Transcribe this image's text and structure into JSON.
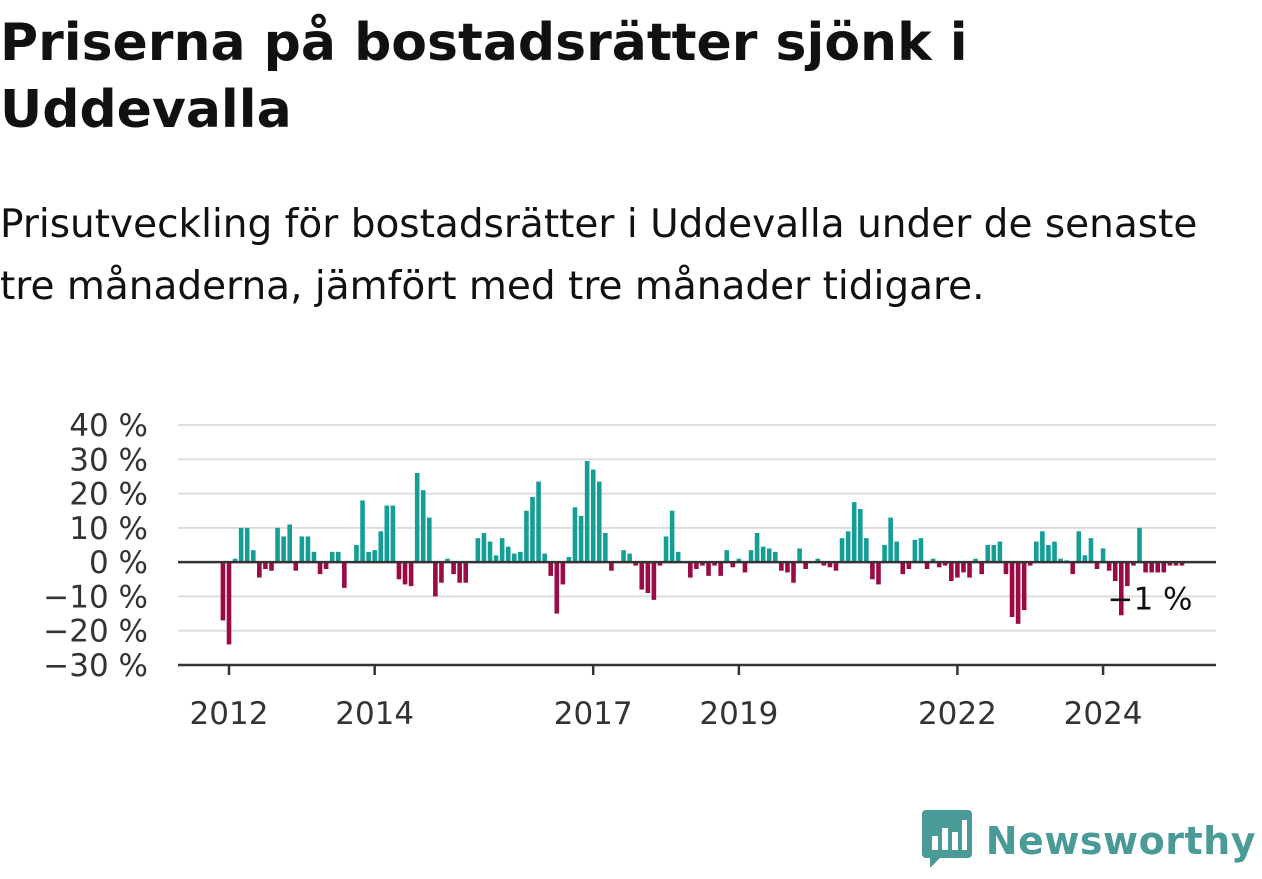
{
  "title": "Priserna på bostadsrätter sjönk i Uddevalla",
  "subtitle": "Prisutveckling för bostadsrätter i Uddevalla under de senaste tre månaderna, jämfört med tre månader tidigare.",
  "brand": {
    "name": "Newsworthy",
    "icon": "newsworthy-logo-icon",
    "color": "#4a9a98"
  },
  "chart_data": {
    "type": "bar",
    "ylim": [
      -30,
      40
    ],
    "yticks": [
      40,
      30,
      20,
      10,
      0,
      -10,
      -20,
      -30
    ],
    "ytick_labels": [
      "40 %",
      "30 %",
      "20 %",
      "10 %",
      "0 %",
      "−10 %",
      "−20 %",
      "−30 %"
    ],
    "xticks": [
      "2012",
      "2014",
      "2017",
      "2019",
      "2022",
      "2024"
    ],
    "grid": true,
    "colors": {
      "positive": "#159e96",
      "negative": "#9b0a44"
    },
    "last_label": "−1 %",
    "x": [
      "2011-12",
      "2012-01",
      "2012-02",
      "2012-03",
      "2012-04",
      "2012-05",
      "2012-06",
      "2012-07",
      "2012-08",
      "2012-09",
      "2012-10",
      "2012-11",
      "2012-12",
      "2013-01",
      "2013-02",
      "2013-03",
      "2013-04",
      "2013-05",
      "2013-06",
      "2013-07",
      "2013-08",
      "2013-09",
      "2013-10",
      "2013-11",
      "2013-12",
      "2014-01",
      "2014-02",
      "2014-03",
      "2014-04",
      "2014-05",
      "2014-06",
      "2014-07",
      "2014-08",
      "2014-09",
      "2014-10",
      "2014-11",
      "2014-12",
      "2015-01",
      "2015-02",
      "2015-03",
      "2015-04",
      "2015-05",
      "2015-06",
      "2015-07",
      "2015-08",
      "2015-09",
      "2015-10",
      "2015-11",
      "2015-12",
      "2016-01",
      "2016-02",
      "2016-03",
      "2016-04",
      "2016-05",
      "2016-06",
      "2016-07",
      "2016-08",
      "2016-09",
      "2016-10",
      "2016-11",
      "2016-12",
      "2017-01",
      "2017-02",
      "2017-03",
      "2017-04",
      "2017-05",
      "2017-06",
      "2017-07",
      "2017-08",
      "2017-09",
      "2017-10",
      "2017-11",
      "2017-12",
      "2018-01",
      "2018-02",
      "2018-03",
      "2018-04",
      "2018-05",
      "2018-06",
      "2018-07",
      "2018-08",
      "2018-09",
      "2018-10",
      "2018-11",
      "2018-12",
      "2019-01",
      "2019-02",
      "2019-03",
      "2019-04",
      "2019-05",
      "2019-06",
      "2019-07",
      "2019-08",
      "2019-09",
      "2019-10",
      "2019-11",
      "2019-12",
      "2020-01",
      "2020-02",
      "2020-03",
      "2020-04",
      "2020-05",
      "2020-06",
      "2020-07",
      "2020-08",
      "2020-09",
      "2020-10",
      "2020-11",
      "2020-12",
      "2021-01",
      "2021-02",
      "2021-03",
      "2021-04",
      "2021-05",
      "2021-06",
      "2021-07",
      "2021-08",
      "2021-09",
      "2021-10",
      "2021-11",
      "2021-12",
      "2022-01",
      "2022-02",
      "2022-03",
      "2022-04",
      "2022-05",
      "2022-06",
      "2022-07",
      "2022-08",
      "2022-09",
      "2022-10",
      "2022-11",
      "2022-12",
      "2023-01",
      "2023-02",
      "2023-03",
      "2023-04",
      "2023-05",
      "2023-06",
      "2023-07",
      "2023-08",
      "2023-09",
      "2023-10",
      "2023-11",
      "2023-12",
      "2024-01",
      "2024-02",
      "2024-03",
      "2024-04",
      "2024-05",
      "2024-06",
      "2024-07",
      "2024-08",
      "2024-09",
      "2024-10",
      "2024-11",
      "2024-12",
      "2025-01",
      "2025-02"
    ],
    "values": [
      -17,
      -24,
      1,
      10,
      10,
      3.5,
      -4.5,
      -2,
      -2.5,
      10,
      7.5,
      11,
      -2.5,
      7.5,
      7.5,
      3,
      -3.5,
      -2,
      3,
      3,
      -7.5,
      0,
      5,
      18,
      3,
      3.5,
      9,
      16.5,
      16.5,
      -5,
      -6.5,
      -7,
      26,
      21,
      13,
      -10,
      -6,
      1,
      -3.5,
      -6,
      -6,
      0,
      7,
      8.5,
      6,
      2,
      7,
      4.5,
      2.5,
      3,
      15,
      19,
      23.5,
      2.5,
      -4,
      -15,
      -6.5,
      1.5,
      16,
      13.5,
      29.5,
      27,
      23.5,
      8.5,
      -2.5,
      0,
      3.5,
      2.5,
      -1,
      -8,
      -9,
      -11,
      -1,
      7.5,
      15,
      3,
      0,
      -4.5,
      -2,
      -1,
      -4,
      -1,
      -4,
      3.5,
      -1.5,
      1,
      -3,
      3.5,
      8.5,
      4.5,
      4,
      3,
      -2.5,
      -3,
      -6,
      4,
      -2,
      0,
      1,
      -1,
      -1.5,
      -2.5,
      7,
      9,
      17.5,
      15.5,
      7,
      -5,
      -6.5,
      5,
      13,
      6,
      -3.5,
      -2,
      6.5,
      7,
      -2,
      1,
      -1.5,
      -1,
      -5.5,
      -4.5,
      -3,
      -4.5,
      1,
      -3.5,
      5,
      5,
      6,
      -3.5,
      -16,
      -18,
      -14,
      -1,
      6,
      9,
      5,
      6,
      1,
      0.5,
      -3.5,
      9,
      2,
      7,
      -2,
      4,
      -2.5,
      -5.5,
      -15.5,
      -7,
      -1,
      10,
      -3,
      -3,
      -3,
      -3,
      -1,
      -1,
      -1
    ]
  }
}
